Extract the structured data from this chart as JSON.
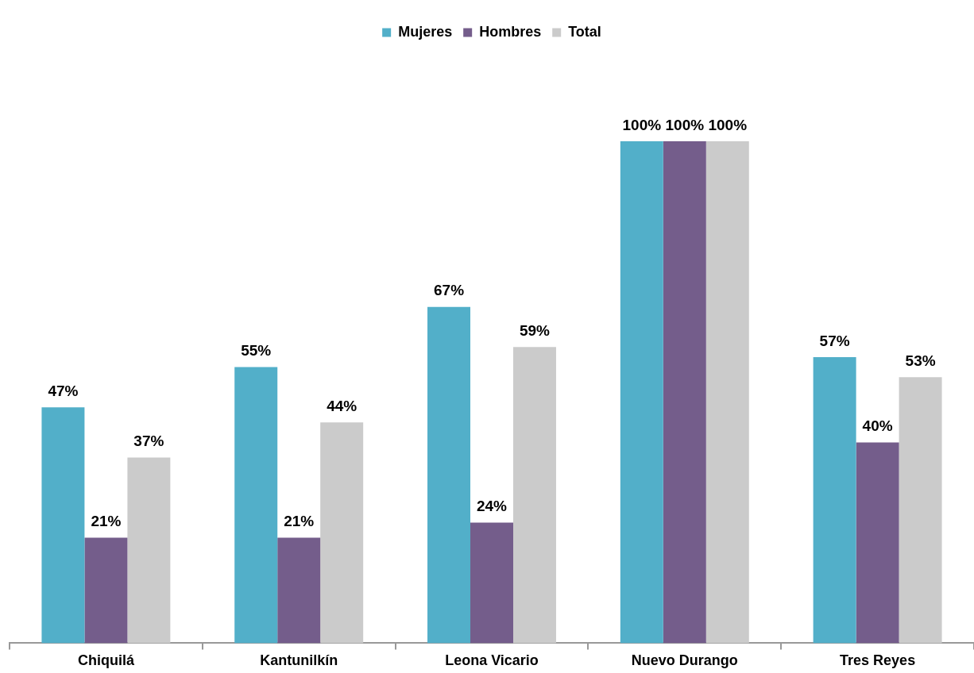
{
  "chart_data": {
    "type": "bar",
    "categories": [
      "Chiquilá",
      "Kantunilkín",
      "Leona Vicario",
      "Nuevo Durango",
      "Tres Reyes"
    ],
    "series": [
      {
        "name": "Mujeres",
        "color": "#52afc9",
        "values": [
          47,
          55,
          67,
          100,
          57
        ],
        "value_labels": [
          "47%",
          "55%",
          "67%",
          "100%",
          "57%"
        ]
      },
      {
        "name": "Hombres",
        "color": "#745d8b",
        "values": [
          21,
          21,
          24,
          100,
          40
        ],
        "value_labels": [
          "21%",
          "21%",
          "24%",
          "100%",
          "40%"
        ]
      },
      {
        "name": "Total",
        "color": "#cbcbcb",
        "values": [
          37,
          44,
          59,
          100,
          53
        ],
        "value_labels": [
          "37%",
          "44%",
          "59%",
          "100%",
          "53%"
        ]
      }
    ],
    "legend": "top",
    "grid": false
  }
}
